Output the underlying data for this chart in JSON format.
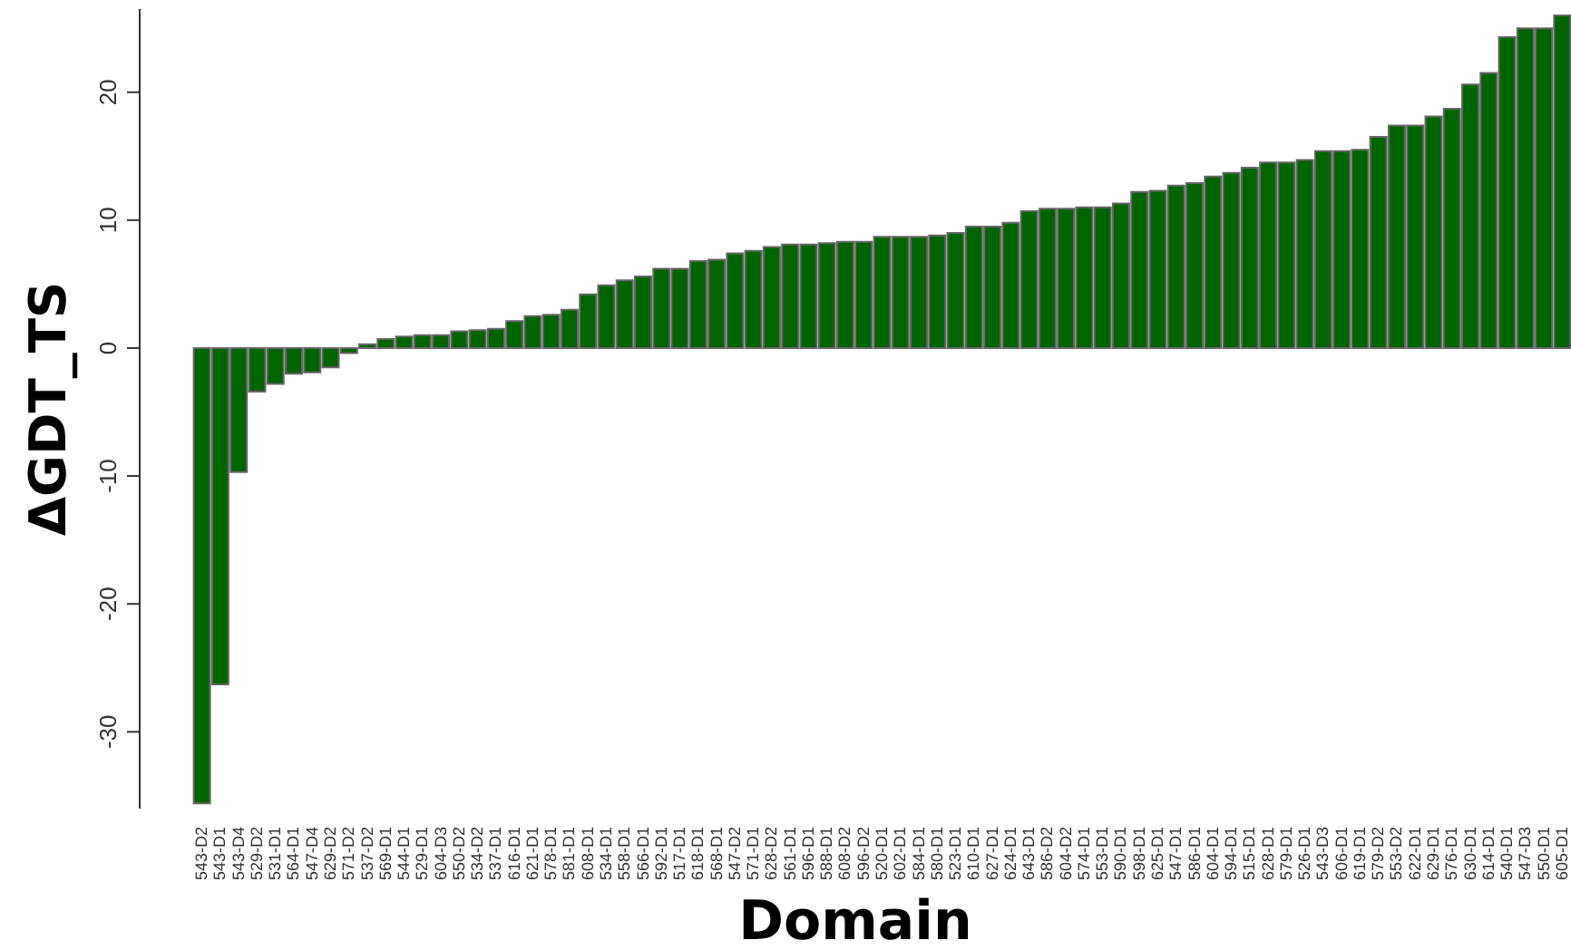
{
  "chart_data": {
    "type": "bar",
    "xlabel": "Domain",
    "ylabel": "ΔGDT_TS",
    "color": "#006400",
    "categories": [
      "543-D2",
      "543-D1",
      "543-D4",
      "529-D2",
      "531-D1",
      "564-D1",
      "547-D4",
      "629-D2",
      "571-D2",
      "537-D2",
      "569-D1",
      "544-D1",
      "529-D1",
      "604-D3",
      "550-D2",
      "534-D2",
      "537-D1",
      "616-D1",
      "621-D1",
      "578-D1",
      "581-D1",
      "608-D1",
      "534-D1",
      "558-D1",
      "566-D1",
      "592-D1",
      "517-D1",
      "618-D1",
      "568-D1",
      "547-D2",
      "571-D1",
      "628-D2",
      "561-D1",
      "596-D1",
      "588-D1",
      "608-D2",
      "596-D2",
      "520-D1",
      "602-D1",
      "584-D1",
      "580-D1",
      "523-D1",
      "610-D1",
      "627-D1",
      "624-D1",
      "643-D1",
      "586-D2",
      "604-D2",
      "574-D1",
      "553-D1",
      "590-D1",
      "598-D1",
      "625-D1",
      "547-D1",
      "586-D1",
      "604-D1",
      "594-D1",
      "515-D1",
      "628-D1",
      "579-D1",
      "526-D1",
      "543-D3",
      "606-D1",
      "619-D1",
      "579-D2",
      "553-D2",
      "622-D1",
      "629-D1",
      "576-D1",
      "630-D1",
      "614-D1",
      "540-D1",
      "547-D3",
      "550-D1",
      "605-D1"
    ],
    "values": [
      -35.6,
      -26.3,
      -9.7,
      -3.4,
      -2.8,
      -2.0,
      -1.9,
      -1.5,
      -0.4,
      0.3,
      0.7,
      0.9,
      1.0,
      1.0,
      1.3,
      1.4,
      1.5,
      2.1,
      2.5,
      2.6,
      3.0,
      4.2,
      4.9,
      5.3,
      5.6,
      6.2,
      6.2,
      6.8,
      6.9,
      7.4,
      7.6,
      7.9,
      8.1,
      8.1,
      8.2,
      8.3,
      8.3,
      8.7,
      8.7,
      8.7,
      8.8,
      9.0,
      9.5,
      9.5,
      9.8,
      10.7,
      10.9,
      10.9,
      11.0,
      11.0,
      11.3,
      12.2,
      12.3,
      12.7,
      12.9,
      13.4,
      13.7,
      14.1,
      14.5,
      14.5,
      14.7,
      15.4,
      15.4,
      15.5,
      16.5,
      17.4,
      17.4,
      18.1,
      18.7,
      20.6,
      21.5,
      24.3,
      25.0,
      25.0,
      26.0
    ],
    "ylim": [
      -36,
      26.5
    ],
    "yticks": [
      -30,
      -20,
      -10,
      0,
      10,
      20
    ],
    "grid": false,
    "legend": false
  }
}
